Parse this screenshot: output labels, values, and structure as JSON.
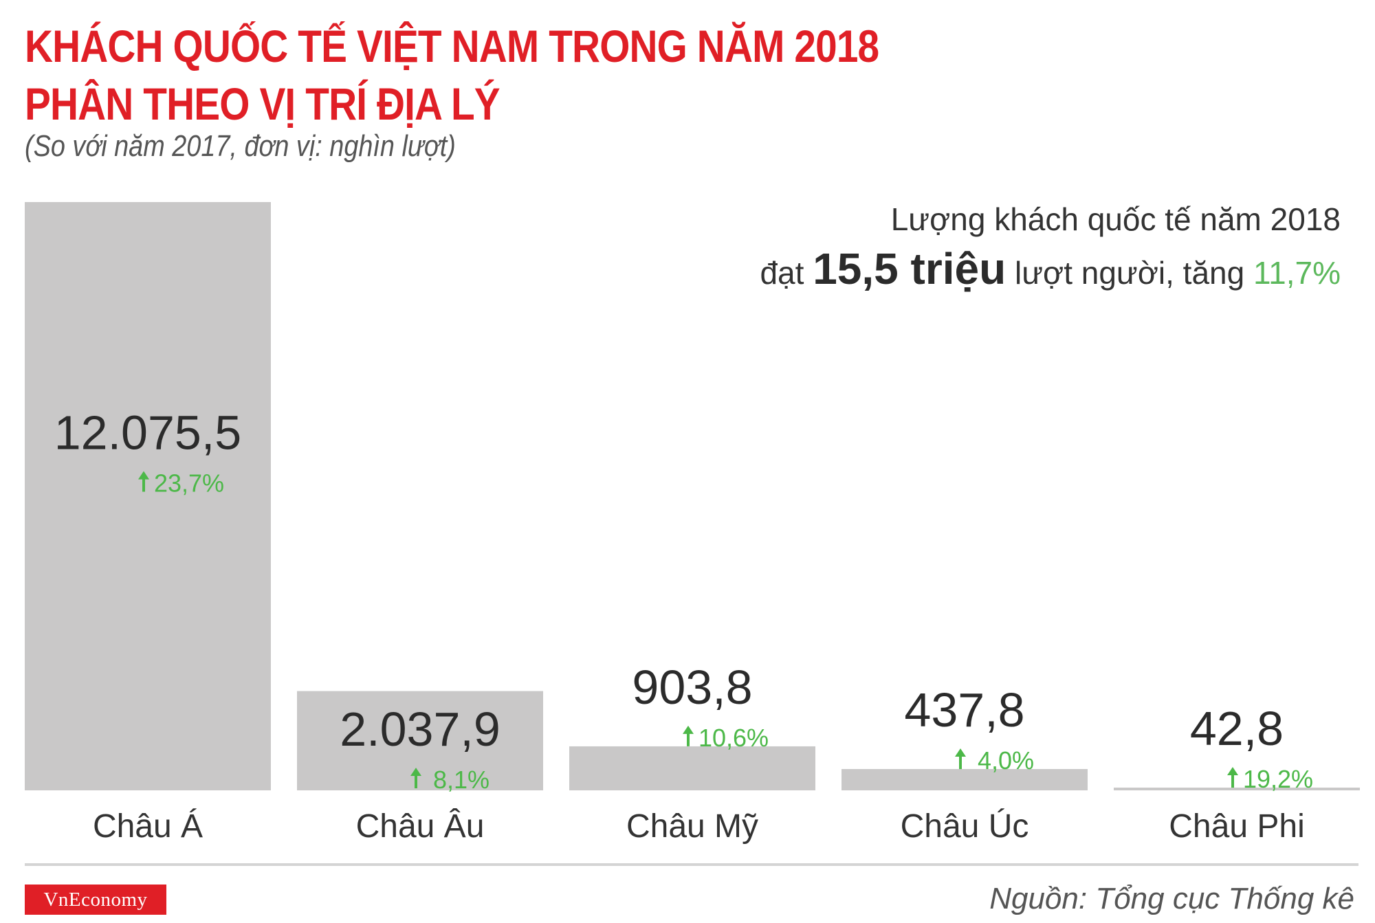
{
  "header": {
    "title_line1": "KHÁCH QUỐC TẾ VIỆT NAM TRONG NĂM 2018",
    "title_line2": "PHÂN THEO VỊ TRÍ ĐỊA LÝ",
    "subtitle": "(So với năm 2017, đơn vị: nghìn lượt)"
  },
  "summary": {
    "line1": "Lượng khách quốc tế năm 2018",
    "prefix": "đạt ",
    "total": "15,5 triệu",
    "middle": " lượt người, tăng ",
    "growth": "11,7%"
  },
  "chart_data": {
    "type": "bar",
    "categories": [
      "Châu Á",
      "Châu Âu",
      "Châu Mỹ",
      "Châu Úc",
      "Châu Phi"
    ],
    "values": [
      12075.5,
      2037.9,
      903.8,
      437.8,
      42.8
    ],
    "value_labels": [
      "12.075,5",
      "2.037,9",
      "903,8",
      "437,8",
      "42,8"
    ],
    "changes": [
      "23,7%",
      "8,1%",
      "10,6%",
      "4,0%",
      "19,2%"
    ],
    "change_direction": "up",
    "ylim": [
      0,
      12075.5
    ],
    "grid": false,
    "legend": "none",
    "colors": {
      "bar": "#c9c8c8",
      "up": "#4cb848",
      "value": "#2b2b2b",
      "category": "#333333"
    }
  },
  "footer": {
    "logo": "VnEconomy",
    "source": "Nguồn: Tổng cục Thống kê"
  },
  "colors": {
    "title": "#e01f26",
    "accent_green": "#5cb85c"
  }
}
